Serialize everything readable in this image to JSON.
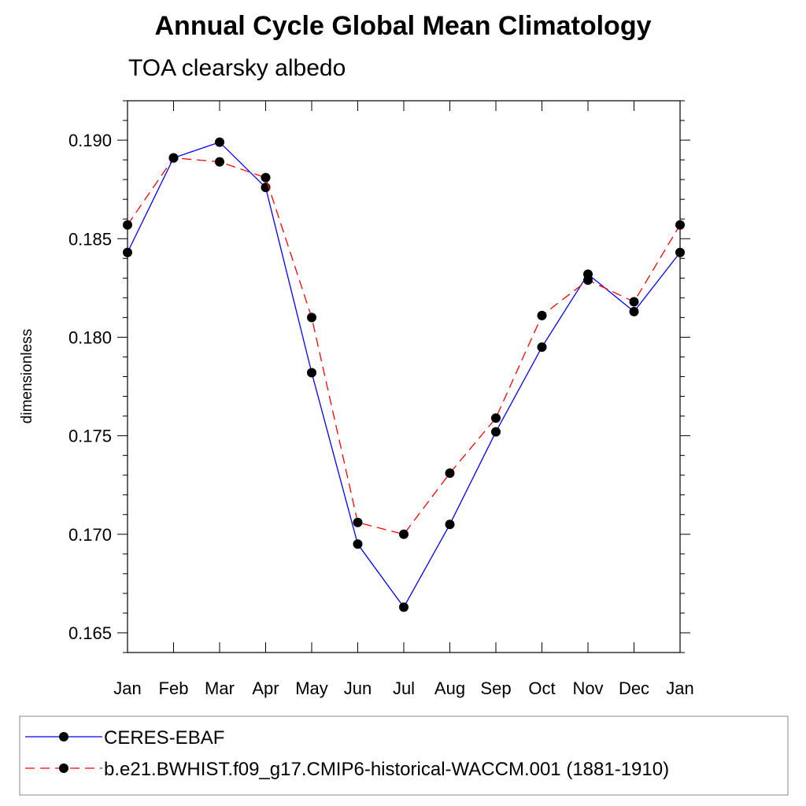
{
  "title": "Annual Cycle Global Mean Climatology",
  "subtitle": "TOA clearsky albedo",
  "chart_data": {
    "type": "line",
    "title": "Annual Cycle Global Mean Climatology",
    "subtitle": "TOA clearsky albedo",
    "xlabel": "",
    "ylabel": "dimensionless",
    "categories": [
      "Jan",
      "Feb",
      "Mar",
      "Apr",
      "May",
      "Jun",
      "Jul",
      "Aug",
      "Sep",
      "Oct",
      "Nov",
      "Dec",
      "Jan"
    ],
    "ylim": [
      0.164,
      0.192
    ],
    "yticks": [
      "0.165",
      "0.170",
      "0.175",
      "0.180",
      "0.185",
      "0.190"
    ],
    "series": [
      {
        "name": "CERES-EBAF",
        "color": "#0000ff",
        "dash": "solid",
        "values": [
          0.1843,
          0.1891,
          0.1899,
          0.1876,
          0.1782,
          0.1695,
          0.1663,
          0.1705,
          0.1752,
          0.1795,
          0.1832,
          0.1813,
          0.1843
        ]
      },
      {
        "name": "b.e21.BWHIST.f09_g17.CMIP6-historical-WACCM.001 (1881-1910)",
        "color": "#ff0000",
        "dash": "dashed",
        "values": [
          0.1857,
          0.1891,
          0.1889,
          0.1881,
          0.181,
          0.1706,
          0.17,
          0.1731,
          0.1759,
          0.1811,
          0.1829,
          0.1818,
          0.1857
        ]
      }
    ],
    "legend": "bottom",
    "grid": false
  }
}
